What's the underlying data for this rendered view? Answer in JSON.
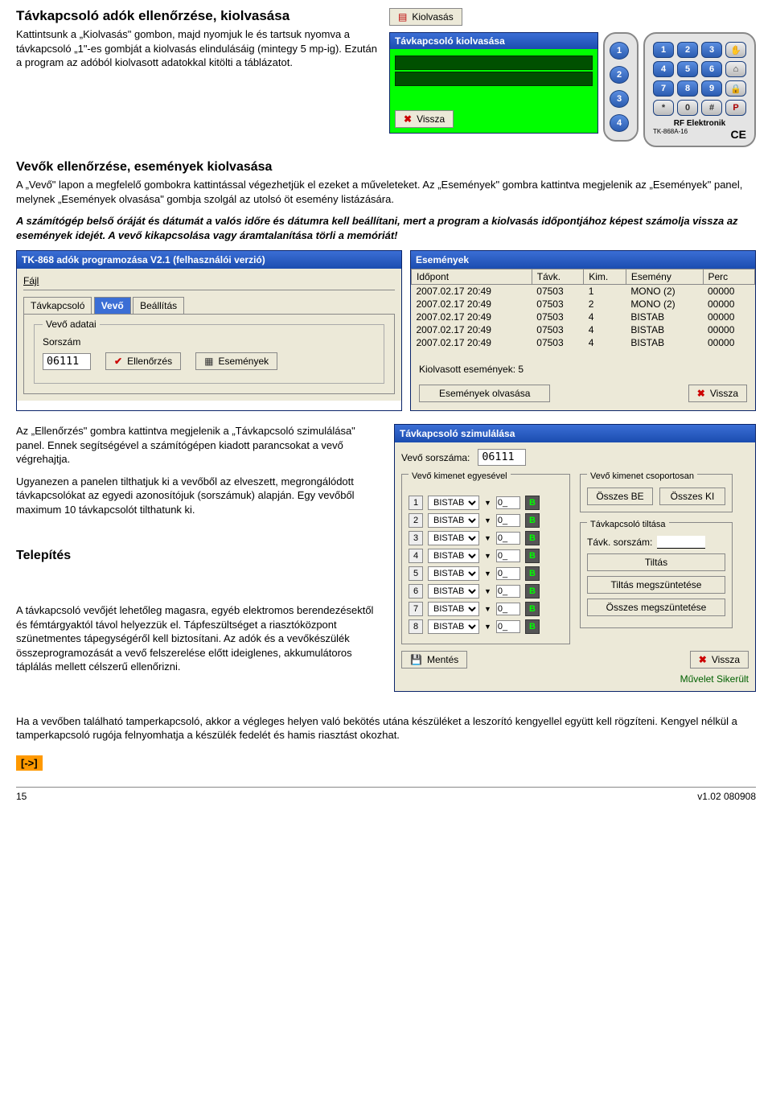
{
  "doc": {
    "h1": "Távkapcsoló adók ellenőrzése, kiolvasása",
    "p1": " Kattintsunk a „Kiolvasás\" gombon, majd nyomjuk le és tartsuk nyomva a távkapcsoló „1\"-es gombját a kiolvasás elindulásáig (mintegy 5 mp-ig). Ezután a program az adóból kiolvasott adatokkal kitölti a táblázatot.",
    "h2a": "Vevők ellenőrzése, események kiolvasása",
    "p2a": "A „Vevő\" lapon a megfelelő gombokra kattintással végezhetjük el ezeket a műveleteket. Az „Események\" gombra kattintva megjelenik az „Események\" panel, melynek „Események olvasása\" gombja szolgál az utolsó öt esemény listázására.",
    "p2b": "A számítógép belső óráját és dátumát a valós időre és dátumra kell beállítani, mert a program a kiolvasás időpontjához képest számolja vissza az események idejét. A vevő kikapcsolása vagy áramtalanítása törli a memóriát!",
    "p3a": "  Az „Ellenőrzés\" gombra kattintva megjelenik a „Távkapcsoló szimulálása\" panel. Ennek segítségével a számítógépen kiadott parancsokat a vevő végrehajtja.",
    "p3b": "  Ugyanezen a panelen tilthatjuk ki a vevőből az elveszett, megrongálódott távkapcsolókat az egyedi azonosítójuk (sorszámuk) alapján. Egy vevőből maximum 10 távkapcsolót tilthatunk ki.",
    "h3": "Telepítés",
    "p4a": "A távkapcsoló vevőjét lehetőleg magasra, egyéb elektromos berendezésektől és fémtárgyaktól távol helyezzük el. Tápfeszültséget a riasztóközpont szünetmentes tápegységéről kell biztosítani. Az adók és a vevőkészülék összeprogramozását a vevő felszerelése előtt ideiglenes, akkumulátoros táplálás mellett célszerű ellenőrizni.",
    "p4b": "  Ha a vevőben található tamperkapcsoló, akkor a végleges helyen való bekötés utána készüléket a leszorító kengyellel együtt kell rögzíteni. Kengyel nélkül a tamperkapcsoló rugója felnyomhatja a készülék fedelét és hamis riasztást okozhat.",
    "link": "[->]",
    "page": "15",
    "ver": "v1.02 080908"
  },
  "kiolvasas": {
    "label": "Kiolvasás",
    "panel_title": "Távkapcsoló kiolvasása",
    "vissza": "Vissza",
    "side_nums": [
      "1",
      "2",
      "3",
      "4"
    ]
  },
  "remote": {
    "keys": [
      "1",
      "2",
      "3",
      "✋",
      "4",
      "5",
      "6",
      "⌂",
      "7",
      "8",
      "9",
      "🔒",
      "*",
      "0",
      "#",
      "P"
    ],
    "brand": "RF Elektronik",
    "model": "TK-868A-16",
    "ce": "CE"
  },
  "prog_window": {
    "title": "TK-868 adók programozása V2.1  (felhasználói verzió)",
    "menu": "Fájl",
    "tabs": [
      "Távkapcsoló",
      "Vevő",
      "Beállítás"
    ],
    "group": "Vevő adatai",
    "sorszam_label": "Sorszám",
    "sorszam_val": "06111",
    "btn_ell": "Ellenőrzés",
    "btn_esem": "Események"
  },
  "events": {
    "title": "Események",
    "cols": [
      "Időpont",
      "Távk.",
      "Kim.",
      "Esemény",
      "Perc"
    ],
    "rows": [
      [
        "2007.02.17  20:49",
        "07503",
        "1",
        "MONO (2)",
        "00000"
      ],
      [
        "2007.02.17  20:49",
        "07503",
        "2",
        "MONO (2)",
        "00000"
      ],
      [
        "2007.02.17  20:49",
        "07503",
        "4",
        "BISTAB",
        "00000"
      ],
      [
        "2007.02.17  20:49",
        "07503",
        "4",
        "BISTAB",
        "00000"
      ],
      [
        "2007.02.17  20:49",
        "07503",
        "4",
        "BISTAB",
        "00000"
      ]
    ],
    "count_label": "Kiolvasott események: 5",
    "read_btn": "Események olvasása",
    "vissza": "Vissza"
  },
  "sim": {
    "title": "Távkapcsoló szimulálása",
    "sorszam_label": "Vevő sorszáma:",
    "sorszam_val": "06111",
    "fs1": "Vevő kimenet egyesével",
    "fs2": "Vevő kimenet csoportosan",
    "rows": [
      {
        "n": "1",
        "mode": "BISTAB",
        "val": "0_",
        "b": "B"
      },
      {
        "n": "2",
        "mode": "BISTAB",
        "val": "0_",
        "b": "B"
      },
      {
        "n": "3",
        "mode": "BISTAB",
        "val": "0_",
        "b": "B"
      },
      {
        "n": "4",
        "mode": "BISTAB",
        "val": "0_",
        "b": "B"
      },
      {
        "n": "5",
        "mode": "BISTAB",
        "val": "0_",
        "b": "B"
      },
      {
        "n": "6",
        "mode": "BISTAB",
        "val": "0_",
        "b": "B"
      },
      {
        "n": "7",
        "mode": "BISTAB",
        "val": "0_",
        "b": "B"
      },
      {
        "n": "8",
        "mode": "BISTAB",
        "val": "0_",
        "b": "B"
      }
    ],
    "all_on": "Összes BE",
    "all_off": "Összes KI",
    "disable_title": "Távkapcsoló tiltása",
    "disable_num": "Távk. sorszám:",
    "btn_tiltas": "Tiltás",
    "btn_megsz": "Tiltás megszüntetése",
    "btn_all_megsz": "Összes megszüntetése",
    "mentes": "Mentés",
    "vissza": "Vissza",
    "status": "Művelet Sikerült",
    "status_color": "#006000"
  }
}
